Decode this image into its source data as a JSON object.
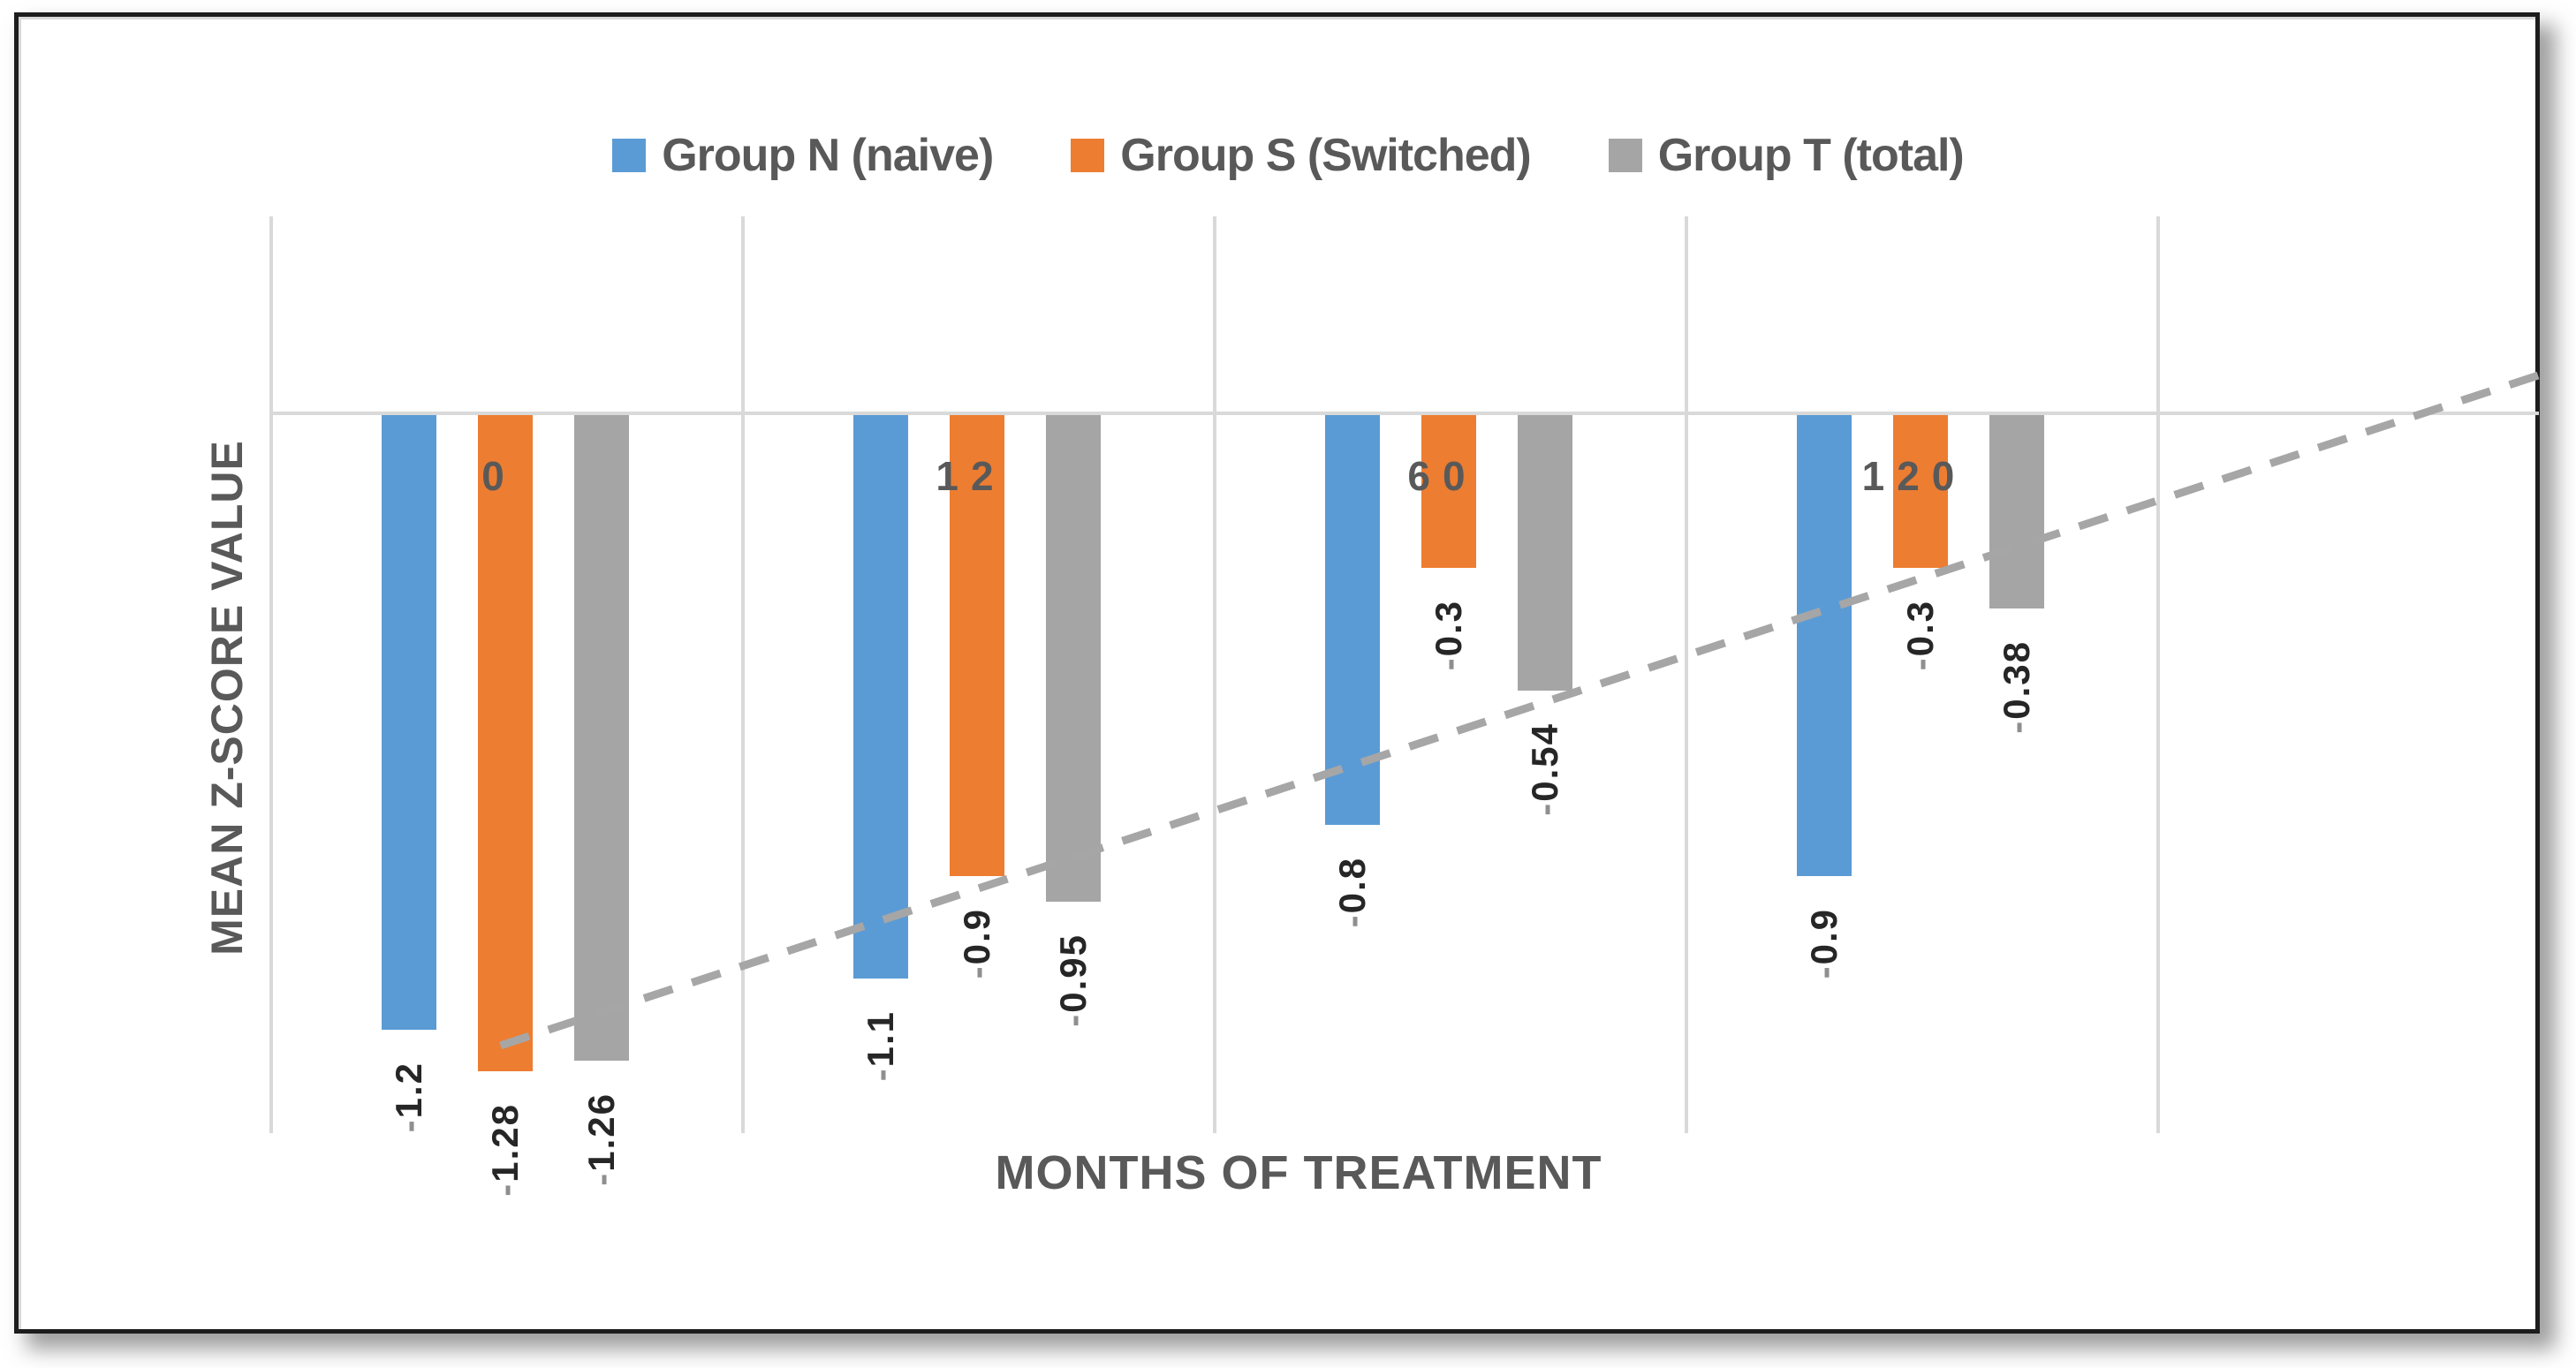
{
  "chart_data": {
    "type": "bar",
    "orientation": "vertical-negative",
    "categories": [
      "0",
      "12",
      "60",
      "120"
    ],
    "series": [
      {
        "name": "Group N (naive)",
        "color": "#5B9BD5",
        "values": [
          -1.2,
          -1.1,
          -0.8,
          -0.9
        ],
        "labels": [
          "-1.2",
          "-1.1",
          "-0.8",
          "-0.9"
        ]
      },
      {
        "name": "Group S (Switched)",
        "color": "#ED7D31",
        "values": [
          -1.28,
          -0.9,
          -0.3,
          -0.3
        ],
        "labels": [
          "-1.28",
          "-0.9",
          "-0.3",
          "-0.3"
        ]
      },
      {
        "name": "Group T (total)",
        "color": "#A5A5A5",
        "values": [
          -1.26,
          -0.95,
          -0.54,
          -0.38
        ],
        "labels": [
          "-1.26",
          "-0.95",
          "-0.54",
          "-0.38"
        ]
      }
    ],
    "xlabel": "MONTHS OF TREATMENT",
    "ylabel": "MEAN Z-SCORE VALUE",
    "ylim": [
      -1.4,
      0.4
    ],
    "y_axis_tick_labels_visible": false,
    "grid": "vertical-category-separators",
    "legend_position": "top",
    "trendline": {
      "style": "dashed",
      "color": "#A6A6A6",
      "start_cat": 0.49,
      "start_value": -1.23,
      "end_cat": 4.81,
      "end_value": 0.074
    },
    "colors": {
      "grid": "#D9D9D9",
      "axis_title_text": "#595959",
      "category_label_text": "#595959",
      "value_label_text": "#262626",
      "value_label_minus": "#8F8F8F",
      "legend_text": "#595959",
      "frame_border": "#1D1D1D"
    }
  }
}
